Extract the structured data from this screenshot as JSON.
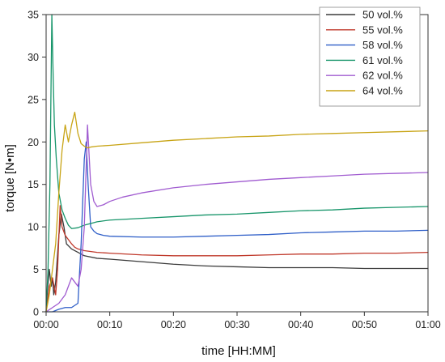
{
  "chart_data": {
    "type": "line",
    "xlabel": "time [HH:MM]",
    "ylabel": "torque [N•m]",
    "xlim": [
      0,
      60
    ],
    "ylim": [
      0,
      35
    ],
    "x_ticks": [
      {
        "value": 0,
        "label": "00:00"
      },
      {
        "value": 10,
        "label": "00:10"
      },
      {
        "value": 20,
        "label": "00:20"
      },
      {
        "value": 30,
        "label": "00:30"
      },
      {
        "value": 40,
        "label": "00:40"
      },
      {
        "value": 50,
        "label": "00:50"
      },
      {
        "value": 60,
        "label": "01:00"
      }
    ],
    "y_ticks": [
      0,
      5,
      10,
      15,
      20,
      25,
      30,
      35
    ],
    "grid": false,
    "legend_position": "top-right",
    "series": [
      {
        "name": "50 vol.%",
        "color": "#3b3b3b",
        "x": [
          0,
          0.2,
          0.5,
          0.8,
          1.0,
          1.2,
          1.5,
          2.0,
          2.4,
          2.8,
          3.2,
          4,
          5,
          6,
          8,
          10,
          15,
          20,
          25,
          30,
          35,
          40,
          45,
          50,
          55,
          60
        ],
        "y": [
          0,
          2.5,
          5,
          3,
          4,
          2,
          3.5,
          9,
          11.5,
          10,
          8,
          7.4,
          7.0,
          6.6,
          6.3,
          6.2,
          5.9,
          5.6,
          5.4,
          5.3,
          5.2,
          5.2,
          5.2,
          5.1,
          5.1,
          5.1
        ]
      },
      {
        "name": "55 vol.%",
        "color": "#c0392b",
        "x": [
          0,
          0.5,
          1.0,
          1.5,
          1.8,
          2.2,
          2.5,
          3,
          3.5,
          4,
          4.5,
          5,
          6,
          8,
          10,
          15,
          20,
          25,
          30,
          35,
          40,
          45,
          50,
          55,
          60
        ],
        "y": [
          0,
          3,
          4,
          2,
          5,
          12.5,
          10,
          9,
          8.5,
          8,
          7.6,
          7.4,
          7.2,
          7.0,
          6.9,
          6.7,
          6.6,
          6.6,
          6.6,
          6.7,
          6.8,
          6.8,
          6.9,
          6.9,
          7.0
        ]
      },
      {
        "name": "58 vol.%",
        "color": "#2f5fc8",
        "x": [
          0,
          1,
          2,
          3,
          4,
          5,
          5.5,
          6,
          6.3,
          6.6,
          7,
          7.5,
          8,
          9,
          10,
          15,
          20,
          25,
          30,
          35,
          40,
          45,
          50,
          55,
          60
        ],
        "y": [
          0,
          0,
          0.3,
          0.5,
          0.5,
          1,
          8,
          18,
          20,
          15,
          10,
          9.5,
          9.2,
          9.0,
          8.9,
          8.8,
          8.8,
          8.9,
          9.0,
          9.1,
          9.3,
          9.4,
          9.5,
          9.5,
          9.6
        ]
      },
      {
        "name": "61 vol.%",
        "color": "#17956a",
        "x": [
          0,
          0.3,
          0.6,
          0.9,
          1.1,
          1.3,
          1.6,
          2,
          2.5,
          3,
          3.5,
          4,
          5,
          6,
          7,
          8,
          10,
          15,
          20,
          25,
          30,
          35,
          40,
          45,
          50,
          55,
          60
        ],
        "y": [
          0,
          5,
          15,
          35,
          28,
          22,
          18,
          14,
          12,
          11,
          10.2,
          9.8,
          9.9,
          10.2,
          10.4,
          10.6,
          10.8,
          11.0,
          11.2,
          11.4,
          11.5,
          11.7,
          11.9,
          12.0,
          12.2,
          12.3,
          12.4
        ]
      },
      {
        "name": "62 vol.%",
        "color": "#a05bd0",
        "x": [
          0,
          1,
          2,
          3,
          3.5,
          4,
          4.5,
          5,
          5.5,
          6,
          6.5,
          7,
          7.5,
          8,
          9,
          10,
          12,
          15,
          20,
          25,
          30,
          35,
          40,
          45,
          50,
          55,
          60
        ],
        "y": [
          0,
          0.5,
          1,
          2,
          3,
          4,
          3.5,
          3,
          5,
          10,
          22,
          15,
          13,
          12.4,
          12.6,
          13.0,
          13.5,
          14.0,
          14.6,
          15.0,
          15.3,
          15.6,
          15.8,
          16.0,
          16.2,
          16.3,
          16.4
        ]
      },
      {
        "name": "64 vol.%",
        "color": "#c8a415",
        "x": [
          0,
          0.5,
          1.0,
          1.5,
          2.0,
          2.5,
          3,
          3.5,
          4,
          4.5,
          5,
          5.5,
          6,
          6.5,
          7,
          8,
          10,
          15,
          20,
          25,
          30,
          35,
          40,
          45,
          50,
          55,
          60
        ],
        "y": [
          0,
          2,
          5,
          8,
          14,
          19,
          22,
          20,
          22,
          23.5,
          21,
          19.8,
          19.5,
          19.3,
          19.4,
          19.5,
          19.6,
          19.9,
          20.2,
          20.4,
          20.6,
          20.7,
          20.9,
          21.0,
          21.1,
          21.2,
          21.3
        ]
      }
    ]
  }
}
